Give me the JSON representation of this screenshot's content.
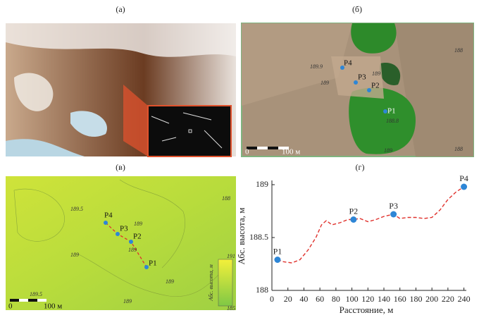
{
  "panel_a": {
    "label": "(а)"
  },
  "panel_b": {
    "label": "(б)",
    "points": [
      "P1",
      "P2",
      "P3",
      "P4"
    ],
    "scale": [
      "0",
      "100 м"
    ],
    "contours": [
      "189.9",
      "189",
      "189",
      "188.8",
      "188",
      "188",
      "189"
    ]
  },
  "panel_v": {
    "label": "(в)",
    "points": [
      "P1",
      "P2",
      "P3",
      "P4"
    ],
    "scale": [
      "0",
      "100 м"
    ],
    "contours": [
      "189.5",
      "189",
      "188",
      "189",
      "189",
      "189.5",
      "189",
      "189"
    ],
    "legend": {
      "title": "Абс. высота, м",
      "max": "191",
      "min": "185"
    }
  },
  "chart_data": {
    "type": "line",
    "title": "(г)",
    "xlabel": "Расстояние, м",
    "ylabel": "Абс. высота, м",
    "xlim": [
      0,
      243
    ],
    "xticks": [
      0,
      20,
      40,
      60,
      80,
      100,
      120,
      140,
      160,
      180,
      200,
      220,
      240
    ],
    "ylim": [
      188,
      189
    ],
    "yticks": [
      188,
      188.5,
      189
    ],
    "x": [
      7,
      15,
      25,
      35,
      45,
      55,
      62,
      68,
      75,
      85,
      95,
      102,
      110,
      120,
      130,
      140,
      152,
      160,
      170,
      180,
      190,
      200,
      210,
      220,
      230,
      240
    ],
    "values": [
      188.29,
      188.27,
      188.26,
      188.29,
      188.38,
      188.5,
      188.62,
      188.66,
      188.62,
      188.64,
      188.67,
      188.67,
      188.68,
      188.65,
      188.67,
      188.7,
      188.72,
      188.68,
      188.69,
      188.69,
      188.68,
      188.69,
      188.76,
      188.86,
      188.93,
      188.98
    ],
    "color": "#e0322d",
    "linestyle": "dashed",
    "points": {
      "labels": [
        "P1",
        "P2",
        "P3",
        "P4"
      ],
      "x": [
        7,
        102,
        152,
        240
      ],
      "values": [
        188.29,
        188.67,
        188.72,
        188.98
      ],
      "color": "#2e86d6"
    }
  }
}
